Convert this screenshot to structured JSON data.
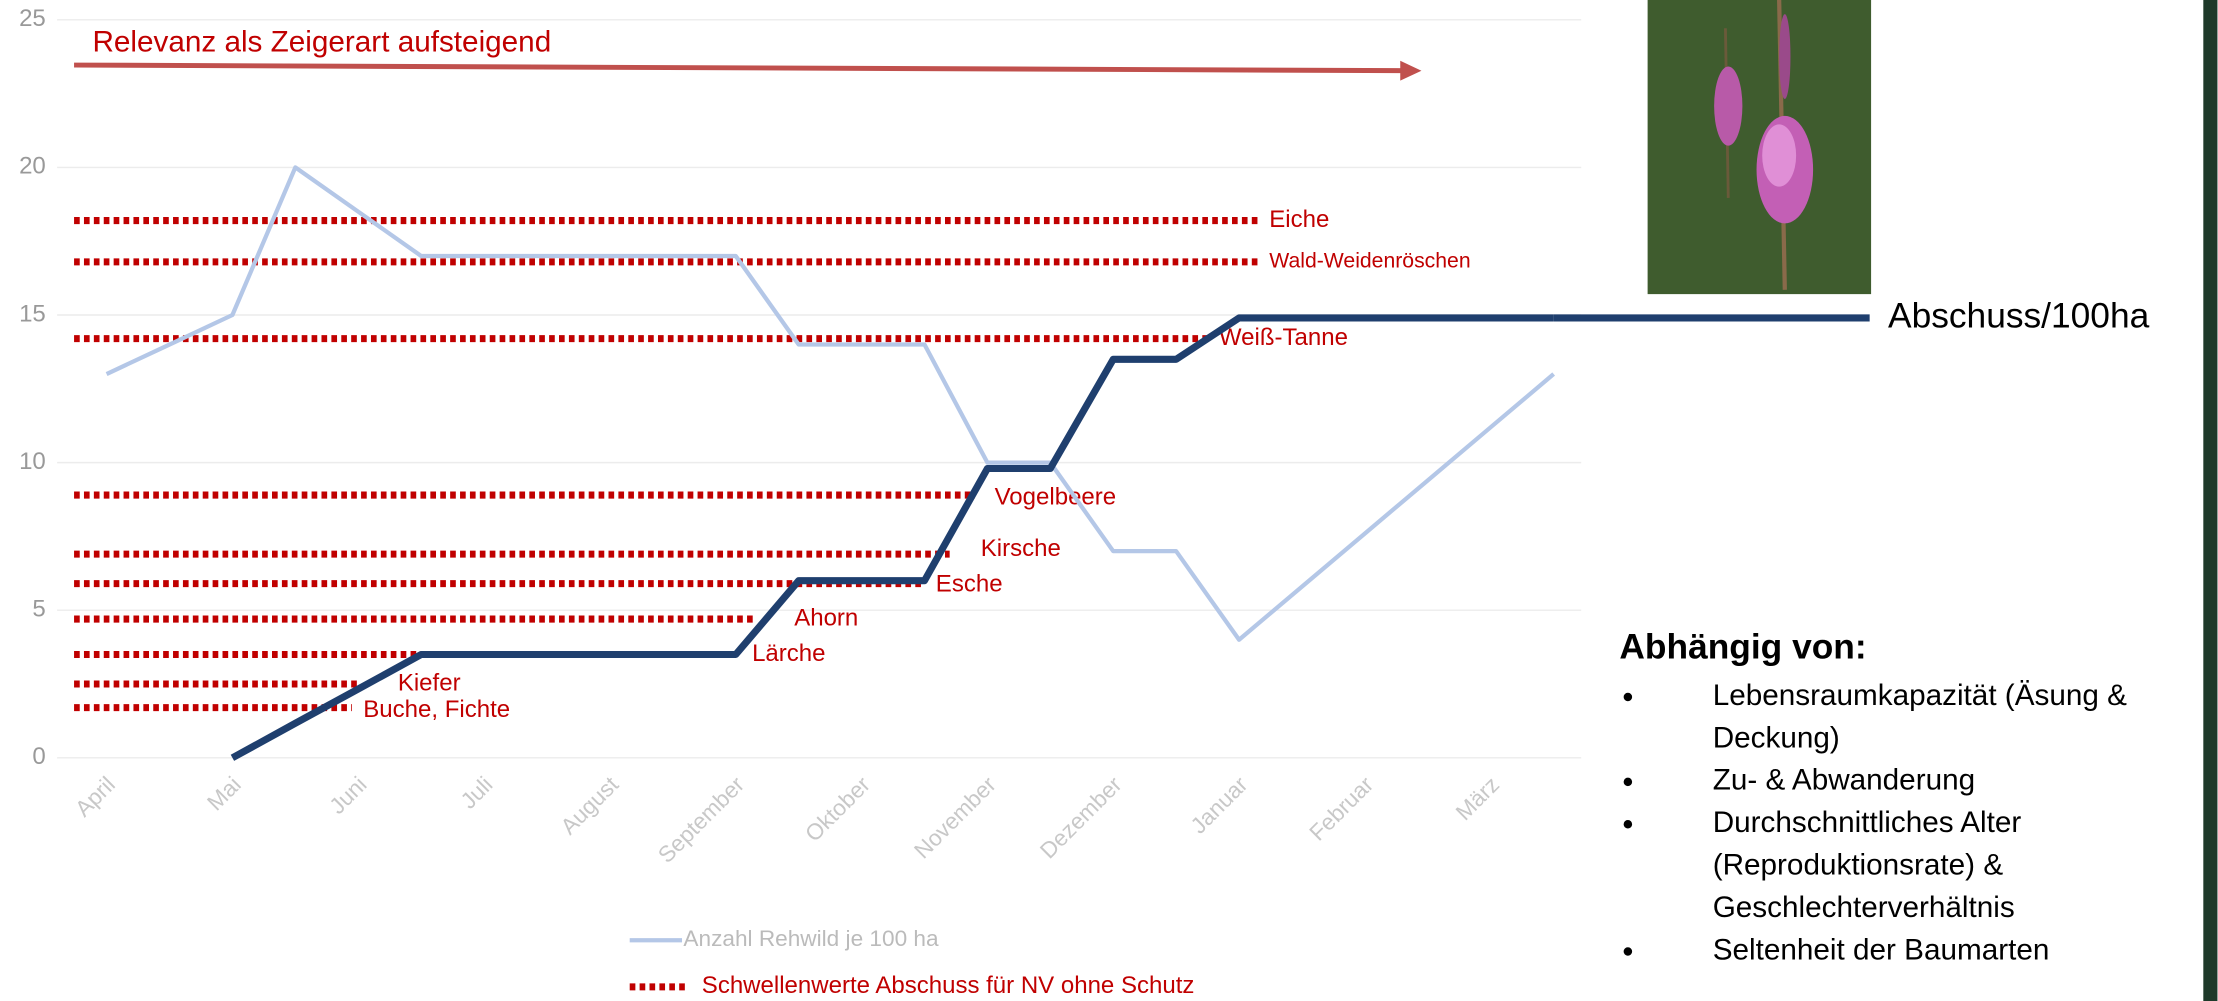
{
  "chart_data": {
    "type": "line",
    "annotation": "Relevanz als Zeigerart aufsteigend",
    "categories": [
      "April",
      null,
      "Mai",
      null,
      "Juni",
      null,
      "Juli",
      null,
      "August",
      null,
      "September",
      null,
      "Oktober",
      null,
      "November",
      null,
      "Dezember",
      null,
      "Januar",
      null,
      "Februar",
      null,
      "März",
      null
    ],
    "ylim": [
      0,
      25
    ],
    "yticks": [
      0,
      5,
      10,
      15,
      20,
      25
    ],
    "grid": true,
    "series": [
      {
        "name": "Anzahl Rehwild je 100 ha",
        "color": "#b4c7e7",
        "values": [
          13,
          14,
          15,
          20,
          18.5,
          17,
          17,
          17,
          17,
          17,
          17,
          14,
          14,
          14,
          10,
          10,
          7,
          7,
          4,
          5.8,
          7.6,
          9.4,
          11.2,
          13
        ]
      },
      {
        "name": "Abschuss/100ha",
        "color": "#1f3f6e",
        "values": [
          null,
          null,
          0,
          1.17,
          2.33,
          3.5,
          3.5,
          3.5,
          3.5,
          3.5,
          3.5,
          6,
          6,
          6,
          9.8,
          9.8,
          13.5,
          13.5,
          14.9,
          14.9,
          14.9,
          14.9,
          14.9,
          14.9
        ]
      }
    ],
    "thresholds": {
      "name": "Schwellenwerte Abschuss für NV ohne Schutz",
      "color": "#c00000",
      "items": [
        {
          "label": "Eiche",
          "value": 18.2,
          "x_end": 18.3
        },
        {
          "label": "Wald-Weidenröschen",
          "value": 16.8,
          "x_end": 18.3
        },
        {
          "label": "Weiß-Tanne",
          "value": 14.2,
          "x_end": 17.5
        },
        {
          "label": "Vogelbeere",
          "value": 8.9,
          "x_end": 13.8
        },
        {
          "label": "Kirsche",
          "value": 6.9,
          "x_end": 13.4
        },
        {
          "label": "Esche",
          "value": 5.9,
          "x_end": 13.0
        },
        {
          "label": "Ahorn",
          "value": 4.7,
          "x_end": 10.3
        },
        {
          "label": "Lärche",
          "value": 3.5,
          "x_end": 9.9
        },
        {
          "label": "Kiefer",
          "value": 2.5,
          "x_end": 4.0
        },
        {
          "label": "Buche, Fichte",
          "value": 1.7,
          "x_end": 3.9
        }
      ]
    }
  },
  "side": {
    "title": "Abhängig von:",
    "items": [
      [
        "Lebensraumkapazität (Äsung &",
        "Deckung)"
      ],
      [
        "Zu- & Abwanderung"
      ],
      [
        "Durchschnittliches Alter",
        "(Reproduktionsrate) &",
        "Geschlechterverhältnis"
      ],
      [
        "Seltenheit der Baumarten"
      ]
    ]
  }
}
